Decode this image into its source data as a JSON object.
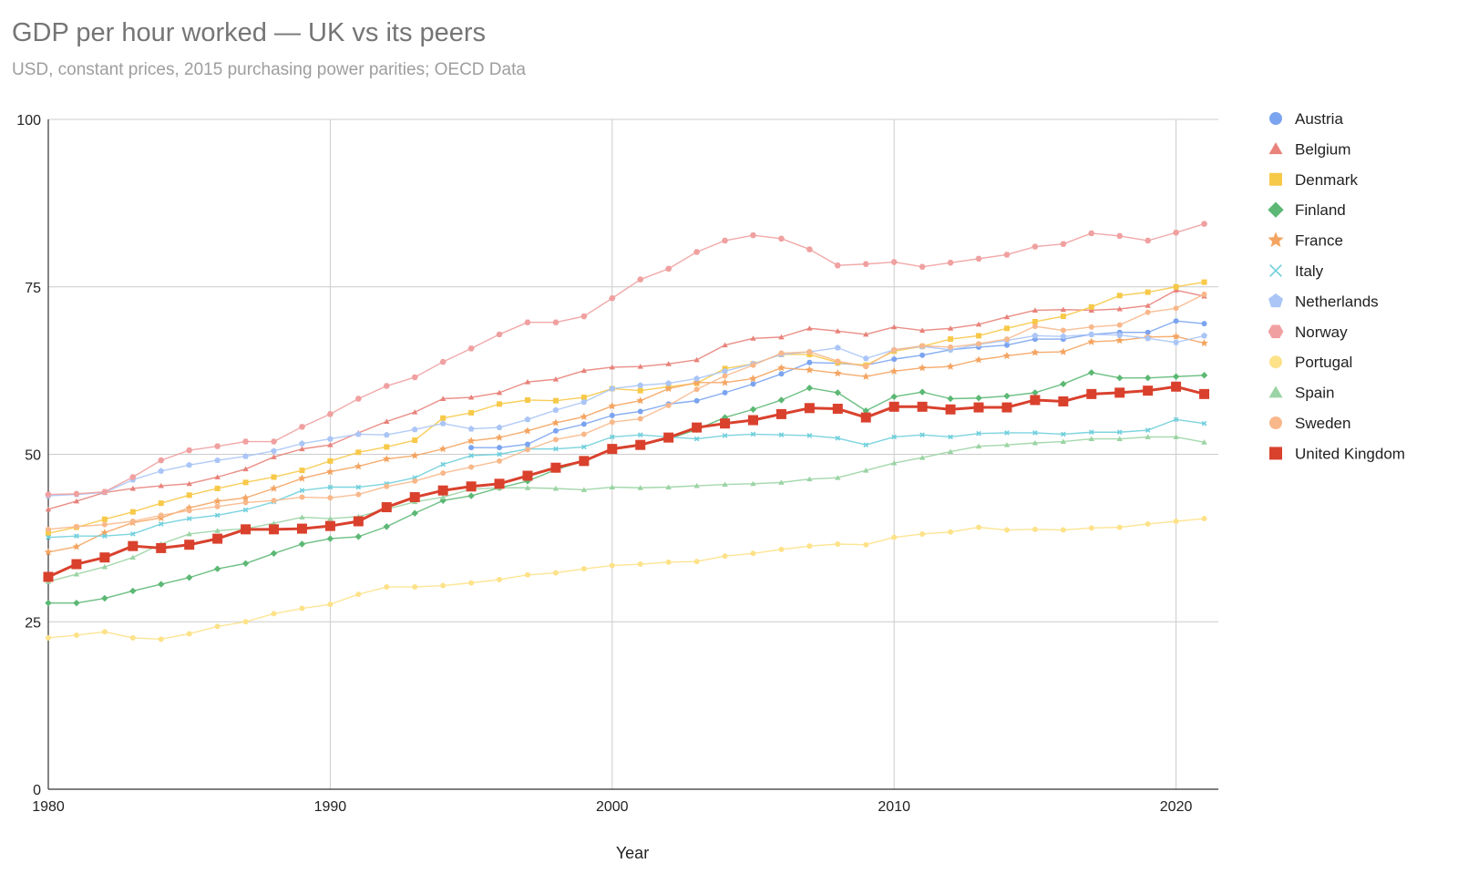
{
  "chart_data": {
    "type": "line",
    "title": "GDP per hour worked — UK vs its peers",
    "subtitle": "USD, constant prices, 2015 purchasing power parities; OECD Data",
    "xlabel": "Year",
    "ylabel": "",
    "xlim": [
      1980,
      2021.5
    ],
    "ylim": [
      0,
      100
    ],
    "x_ticks": [
      1980,
      1990,
      2000,
      2010,
      2020
    ],
    "y_ticks": [
      0,
      25,
      50,
      75,
      100
    ],
    "grid": true,
    "legend_position": "right",
    "x": [
      1980,
      1981,
      1982,
      1983,
      1984,
      1985,
      1986,
      1987,
      1988,
      1989,
      1990,
      1991,
      1992,
      1993,
      1994,
      1995,
      1996,
      1997,
      1998,
      1999,
      2000,
      2001,
      2002,
      2003,
      2004,
      2005,
      2006,
      2007,
      2008,
      2009,
      2010,
      2011,
      2012,
      2013,
      2014,
      2015,
      2016,
      2017,
      2018,
      2019,
      2020,
      2021
    ],
    "series": [
      {
        "name": "Austria",
        "color": "#7ba4f0",
        "marker": "circle",
        "size": 6,
        "emphasis": false,
        "values": [
          null,
          null,
          null,
          null,
          null,
          null,
          null,
          null,
          null,
          null,
          null,
          null,
          null,
          null,
          null,
          51.0,
          51.0,
          51.5,
          53.5,
          54.5,
          55.8,
          56.4,
          57.5,
          58.0,
          59.2,
          60.5,
          62.0,
          63.7,
          63.6,
          63.3,
          64.2,
          64.8,
          65.6,
          66.0,
          66.3,
          67.2,
          67.2,
          67.9,
          68.2,
          68.2,
          69.9,
          69.5
        ]
      },
      {
        "name": "Belgium",
        "color": "#e8827a",
        "marker": "triangle",
        "size": 6,
        "emphasis": false,
        "values": [
          41.8,
          43.0,
          44.3,
          44.9,
          45.3,
          45.6,
          46.6,
          47.8,
          49.6,
          50.8,
          51.4,
          53.2,
          54.9,
          56.3,
          58.3,
          58.5,
          59.2,
          60.8,
          61.2,
          62.5,
          63.0,
          63.1,
          63.5,
          64.1,
          66.3,
          67.3,
          67.5,
          68.8,
          68.4,
          67.9,
          69.0,
          68.5,
          68.8,
          69.4,
          70.5,
          71.5,
          71.6,
          71.5,
          71.7,
          72.2,
          74.5,
          73.6
        ]
      },
      {
        "name": "Denmark",
        "color": "#f7c948",
        "marker": "square",
        "size": 6,
        "emphasis": false,
        "values": [
          38.2,
          39.1,
          40.3,
          41.4,
          42.7,
          43.9,
          44.9,
          45.8,
          46.6,
          47.6,
          49.0,
          50.3,
          51.1,
          52.1,
          55.4,
          56.2,
          57.5,
          58.1,
          58.0,
          58.5,
          59.8,
          59.5,
          60.1,
          60.6,
          62.8,
          63.5,
          64.9,
          64.9,
          63.7,
          63.3,
          65.4,
          66.1,
          67.2,
          67.7,
          68.8,
          69.8,
          70.6,
          72.0,
          73.7,
          74.2,
          75.0,
          75.7
        ]
      },
      {
        "name": "Finland",
        "color": "#5cb874",
        "marker": "diamond",
        "size": 6,
        "emphasis": false,
        "values": [
          27.8,
          27.8,
          28.5,
          29.6,
          30.6,
          31.6,
          32.9,
          33.7,
          35.2,
          36.6,
          37.4,
          37.7,
          39.2,
          41.2,
          43.1,
          43.8,
          45.0,
          46.0,
          47.7,
          49.0,
          50.9,
          51.5,
          52.3,
          53.7,
          55.5,
          56.7,
          58.1,
          59.9,
          59.2,
          56.5,
          58.6,
          59.3,
          58.3,
          58.4,
          58.7,
          59.2,
          60.5,
          62.2,
          61.4,
          61.4,
          61.6,
          61.8
        ]
      },
      {
        "name": "France",
        "color": "#f4a460",
        "marker": "star",
        "size": 7,
        "emphasis": false,
        "values": [
          35.4,
          36.2,
          38.3,
          39.8,
          40.5,
          42.0,
          43.0,
          43.5,
          44.9,
          46.4,
          47.4,
          48.2,
          49.3,
          49.8,
          50.8,
          52.0,
          52.5,
          53.5,
          54.7,
          55.6,
          57.2,
          58.0,
          59.8,
          60.7,
          60.7,
          61.3,
          62.9,
          62.6,
          62.1,
          61.6,
          62.4,
          62.9,
          63.1,
          64.1,
          64.7,
          65.2,
          65.3,
          66.8,
          67.0,
          67.5,
          67.6,
          66.6
        ]
      },
      {
        "name": "Italy",
        "color": "#6fcfdc",
        "marker": "x",
        "size": 5,
        "emphasis": false,
        "values": [
          37.6,
          37.8,
          37.8,
          38.1,
          39.6,
          40.4,
          40.9,
          41.7,
          42.9,
          44.6,
          45.1,
          45.1,
          45.6,
          46.5,
          48.5,
          49.8,
          50.0,
          50.8,
          50.8,
          51.1,
          52.6,
          52.9,
          52.6,
          52.3,
          52.8,
          53.0,
          52.9,
          52.8,
          52.4,
          51.4,
          52.6,
          52.9,
          52.6,
          53.1,
          53.2,
          53.2,
          53.0,
          53.3,
          53.3,
          53.6,
          55.2,
          54.6
        ]
      },
      {
        "name": "Netherlands",
        "color": "#aac5f6",
        "marker": "pentagon",
        "size": 6,
        "emphasis": false,
        "values": [
          43.8,
          44.0,
          44.3,
          46.2,
          47.5,
          48.4,
          49.1,
          49.7,
          50.5,
          51.6,
          52.3,
          53.0,
          52.9,
          53.7,
          54.6,
          53.8,
          54.0,
          55.2,
          56.6,
          57.8,
          59.8,
          60.3,
          60.6,
          61.3,
          62.4,
          63.5,
          64.9,
          65.3,
          65.9,
          64.3,
          65.6,
          66.1,
          65.6,
          66.4,
          67.0,
          67.7,
          67.6,
          67.9,
          67.8,
          67.3,
          66.7,
          67.7
        ]
      },
      {
        "name": "Norway",
        "color": "#f0a0a0",
        "marker": "hexagon",
        "size": 6,
        "emphasis": false,
        "values": [
          44.0,
          44.1,
          44.4,
          46.6,
          49.1,
          50.6,
          51.2,
          51.9,
          51.9,
          54.1,
          56.0,
          58.3,
          60.2,
          61.5,
          63.8,
          65.8,
          67.9,
          69.7,
          69.7,
          70.6,
          73.3,
          76.1,
          77.7,
          80.2,
          81.9,
          82.7,
          82.2,
          80.6,
          78.2,
          78.4,
          78.7,
          78.0,
          78.6,
          79.2,
          79.8,
          81.0,
          81.4,
          83.0,
          82.6,
          81.9,
          83.1,
          84.4
        ]
      },
      {
        "name": "Portugal",
        "color": "#fde28a",
        "marker": "circle",
        "size": 6,
        "emphasis": false,
        "values": [
          22.6,
          23.0,
          23.5,
          22.6,
          22.4,
          23.2,
          24.3,
          25.0,
          26.2,
          27.0,
          27.6,
          29.1,
          30.2,
          30.2,
          30.4,
          30.8,
          31.3,
          32.0,
          32.3,
          32.9,
          33.4,
          33.6,
          33.9,
          34.0,
          34.8,
          35.2,
          35.8,
          36.3,
          36.6,
          36.5,
          37.6,
          38.1,
          38.4,
          39.1,
          38.7,
          38.8,
          38.7,
          39.0,
          39.1,
          39.6,
          40.0,
          40.4
        ]
      },
      {
        "name": "Spain",
        "color": "#9bd4a4",
        "marker": "triangle",
        "size": 6,
        "emphasis": false,
        "values": [
          31.0,
          32.1,
          33.2,
          34.6,
          36.6,
          38.1,
          38.6,
          38.9,
          39.7,
          40.6,
          40.4,
          40.7,
          41.8,
          42.9,
          43.6,
          44.8,
          45.0,
          45.0,
          44.9,
          44.7,
          45.1,
          45.0,
          45.1,
          45.3,
          45.5,
          45.6,
          45.8,
          46.3,
          46.5,
          47.6,
          48.7,
          49.5,
          50.4,
          51.2,
          51.4,
          51.7,
          51.9,
          52.3,
          52.3,
          52.6,
          52.6,
          51.8
        ]
      },
      {
        "name": "Sweden",
        "color": "#f8b88b",
        "marker": "circle",
        "size": 6,
        "emphasis": false,
        "values": [
          38.8,
          39.2,
          39.5,
          40.0,
          40.9,
          41.6,
          42.2,
          42.8,
          43.1,
          43.6,
          43.5,
          44.0,
          45.2,
          46.0,
          47.2,
          48.1,
          49.0,
          50.7,
          52.2,
          53.0,
          54.8,
          55.3,
          57.3,
          59.7,
          61.7,
          63.3,
          65.1,
          65.3,
          63.9,
          63.1,
          65.6,
          66.2,
          66.0,
          66.5,
          67.2,
          69.1,
          68.5,
          69.0,
          69.3,
          71.2,
          71.8,
          73.9
        ]
      },
      {
        "name": "United Kingdom",
        "color": "#d9412d",
        "marker": "square",
        "size": 11,
        "emphasis": true,
        "values": [
          31.7,
          33.6,
          34.6,
          36.3,
          36.0,
          36.5,
          37.4,
          38.8,
          38.8,
          38.9,
          39.3,
          40.0,
          42.1,
          43.6,
          44.6,
          45.2,
          45.6,
          46.8,
          48.0,
          49.0,
          50.8,
          51.4,
          52.5,
          54.0,
          54.6,
          55.1,
          56.0,
          56.9,
          56.8,
          55.5,
          57.1,
          57.1,
          56.7,
          57.0,
          57.0,
          58.1,
          57.9,
          59.0,
          59.2,
          59.5,
          60.1,
          59.0
        ]
      }
    ]
  }
}
